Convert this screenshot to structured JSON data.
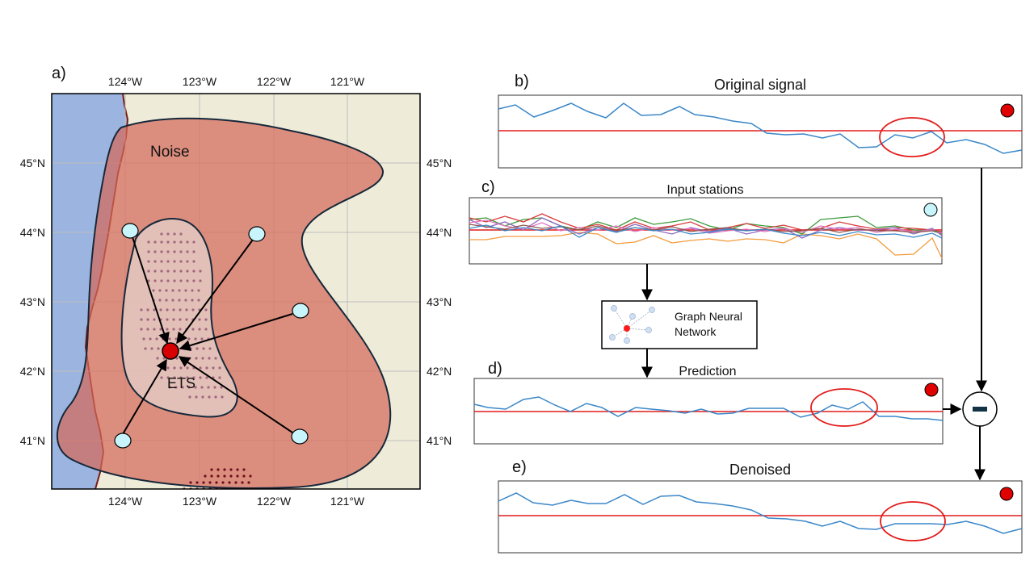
{
  "map": {
    "panel_label": "a)",
    "top_lon_ticks": [
      "124°W",
      "123°W",
      "122°W",
      "121°W"
    ],
    "bottom_lon_ticks": [
      "124°W",
      "123°W",
      "122°W",
      "121°W"
    ],
    "left_lat_ticks": [
      "45°N",
      "44°N",
      "43°N",
      "42°N",
      "41°N"
    ],
    "right_lat_ticks": [
      "45°N",
      "44°N",
      "43°N",
      "42°N",
      "41°N"
    ],
    "noise_label": "Noise",
    "ets_label": "ETS",
    "colors": {
      "ocean": "#9bb5e0",
      "land": "#eeecd9",
      "noise": "#e08b7e",
      "ets": "#dfc2bc",
      "target": "#d60000",
      "station": "#c8f4fb"
    }
  },
  "panels": {
    "b": {
      "label": "b)",
      "title": "Original signal"
    },
    "c": {
      "label": "c)",
      "title": "Input stations"
    },
    "gnn": {
      "line1": "Graph Neural",
      "line2": "Network"
    },
    "d": {
      "label": "d)",
      "title": "Prediction"
    },
    "e": {
      "label": "e)",
      "title": "Denoised"
    }
  },
  "operator": {
    "symbol": "minus-icon"
  }
}
